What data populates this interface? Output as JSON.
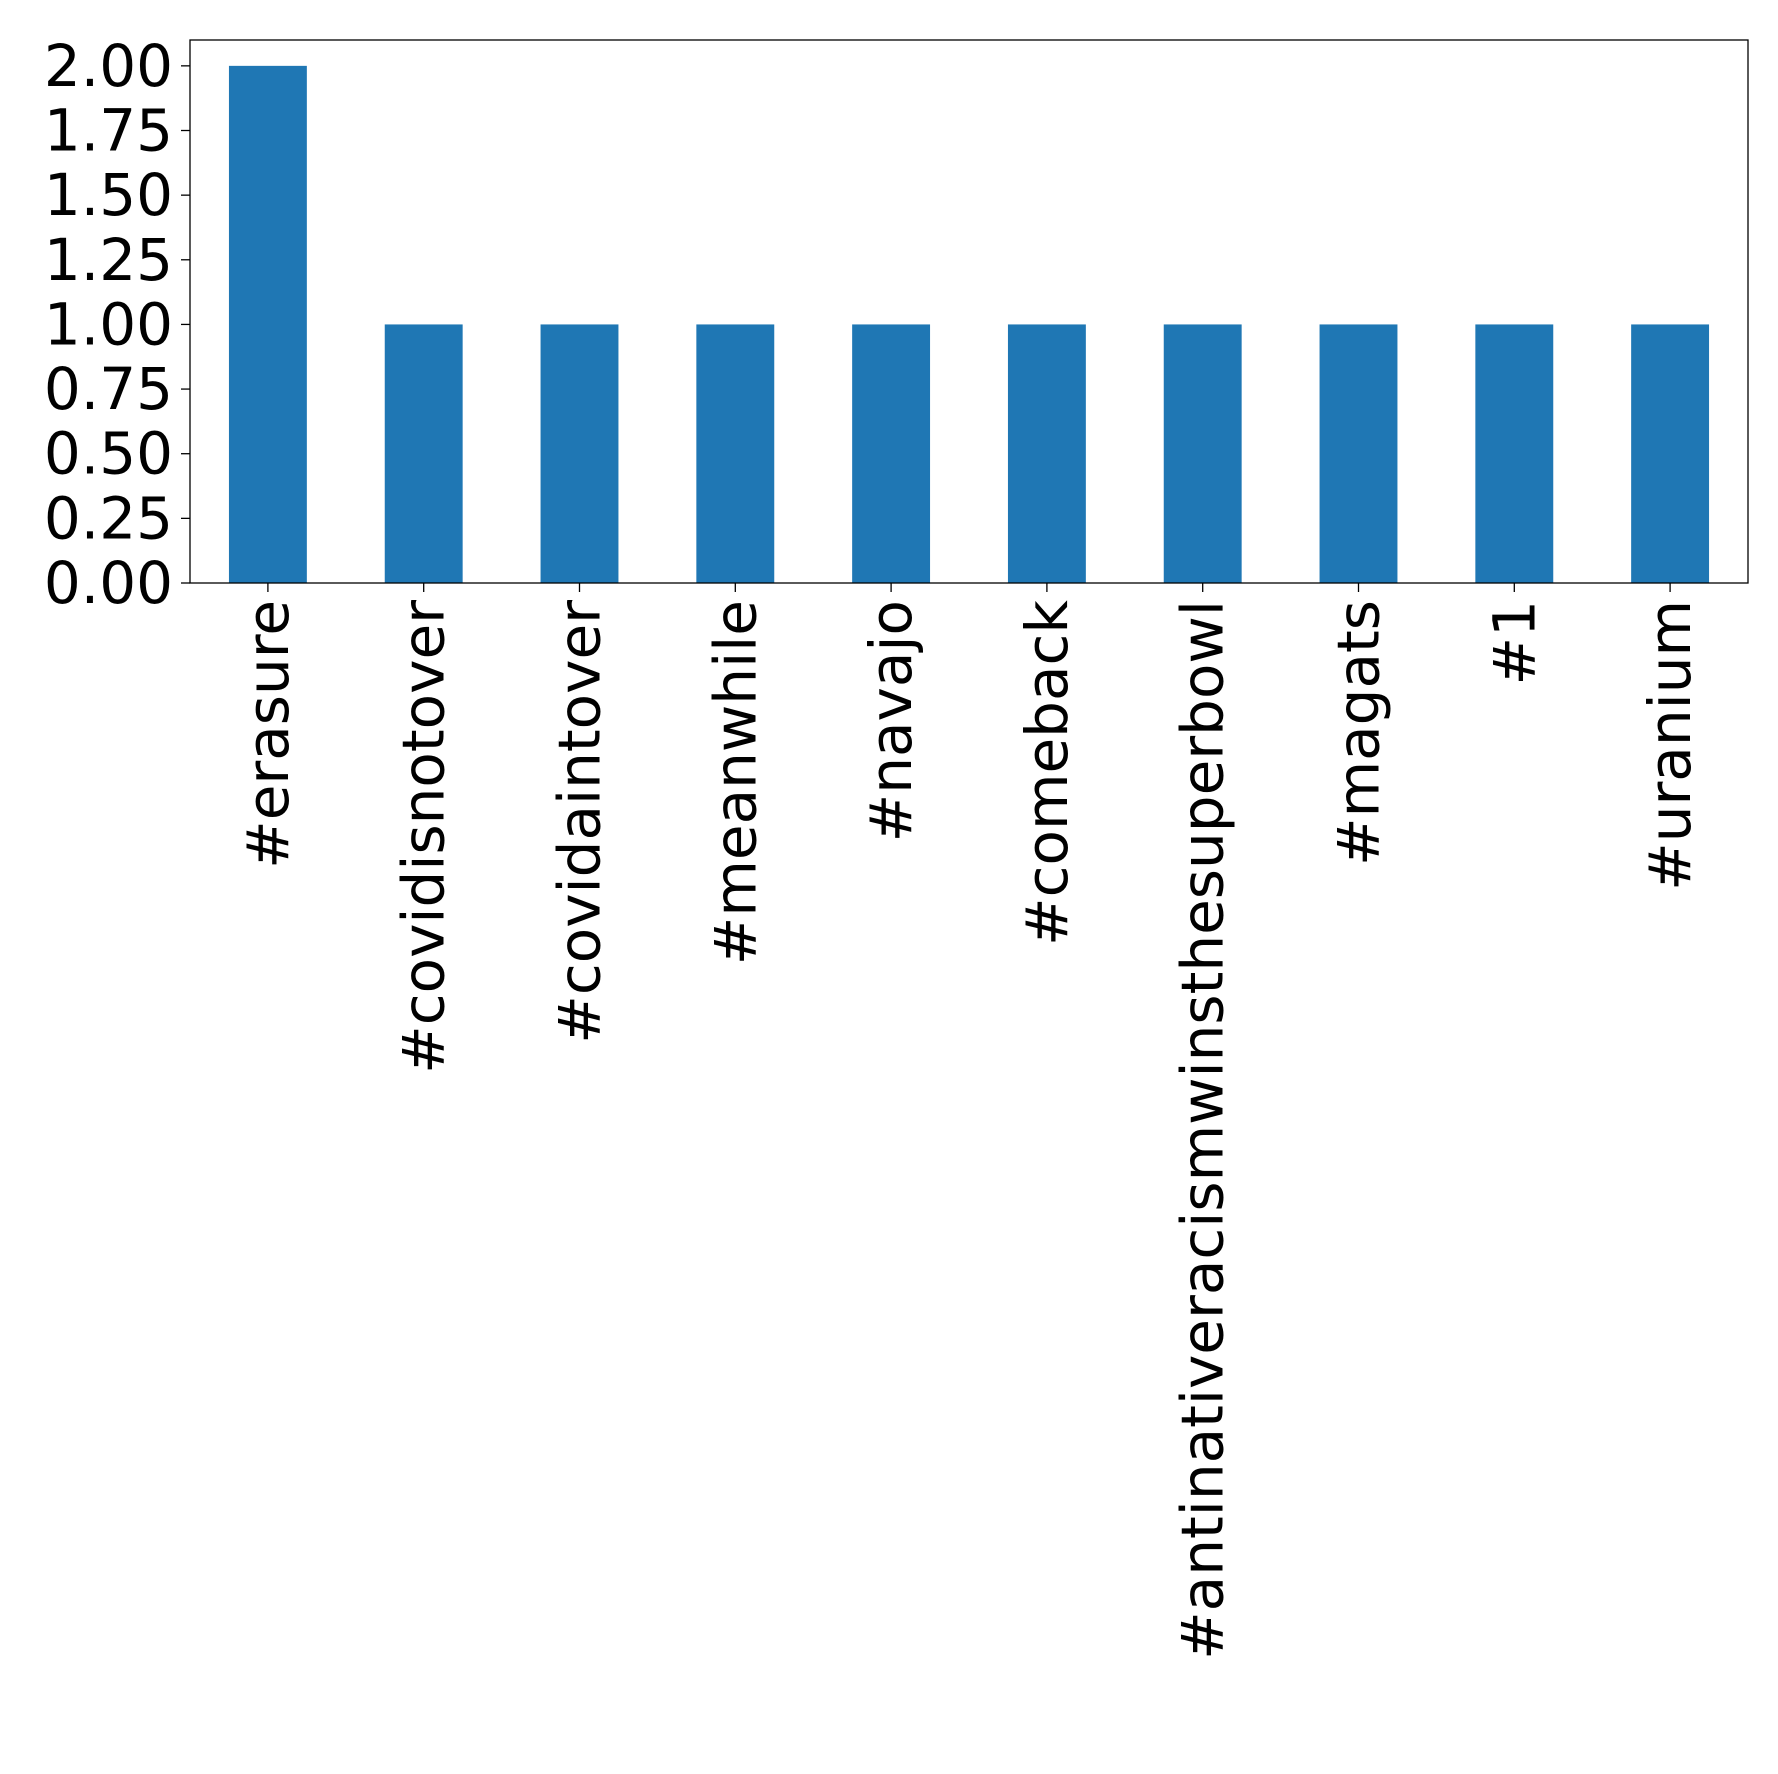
{
  "chart_data": {
    "type": "bar",
    "title": "",
    "xlabel": "",
    "ylabel": "",
    "categories": [
      "#erasure",
      "#covidisnotover",
      "#covidaintover",
      "#meanwhile",
      "#navajo",
      "#comeback",
      "#antinativeracismwinsthesuperbowl",
      "#magats",
      "#1",
      "#uranium"
    ],
    "values": [
      2,
      1,
      1,
      1,
      1,
      1,
      1,
      1,
      1,
      1
    ],
    "ylim": [
      0,
      2.1
    ],
    "yticks": [
      "0.00",
      "0.25",
      "0.50",
      "0.75",
      "1.00",
      "1.25",
      "1.50",
      "1.75",
      "2.00"
    ],
    "ytick_values": [
      0,
      0.25,
      0.5,
      0.75,
      1.0,
      1.25,
      1.5,
      1.75,
      2.0
    ],
    "bar_color": "#1f77b4",
    "grid": false,
    "legend": "none",
    "xtick_rotation": "vertical"
  }
}
